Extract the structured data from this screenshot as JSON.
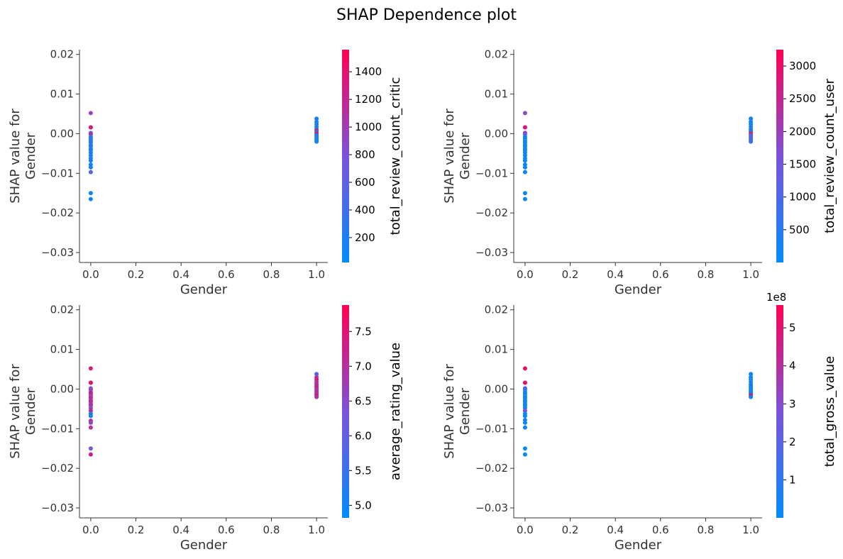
{
  "title": "SHAP Dependence plot",
  "chart_data": [
    {
      "type": "scatter",
      "xlabel": "Gender",
      "ylabel": [
        "SHAP value for",
        "Gender"
      ],
      "xlim": [
        -0.05,
        1.05
      ],
      "ylim": [
        -0.0325,
        0.0212
      ],
      "xticks": [
        0.0,
        0.2,
        0.4,
        0.6,
        0.8,
        1.0
      ],
      "xtick_labels": [
        "0.0",
        "0.2",
        "0.4",
        "0.6",
        "0.8",
        "1.0"
      ],
      "yticks": [
        0.02,
        0.01,
        0.0,
        -0.01,
        -0.02,
        -0.03
      ],
      "ytick_labels": [
        "0.02",
        "0.01",
        "0.00",
        "−0.01",
        "−0.02",
        "−0.03"
      ],
      "color_feature": "total_review_count_critic",
      "color_range": [
        20,
        1560
      ],
      "cbar_ticks": [
        200,
        400,
        600,
        800,
        1000,
        1200,
        1400
      ],
      "cbar_tick_labels": [
        "200",
        "400",
        "600",
        "800",
        "1000",
        "1200",
        "1400"
      ],
      "cbar_offset": "",
      "points": [
        {
          "x": 0,
          "y": 0.0052,
          "c": 900
        },
        {
          "x": 0,
          "y": 0.0016,
          "c": 1500
        },
        {
          "x": 0,
          "y": 0.0016,
          "c": 1300
        },
        {
          "x": 0,
          "y": 0.0002,
          "c": 700
        },
        {
          "x": 0,
          "y": -0.0002,
          "c": 1100
        },
        {
          "x": 0,
          "y": -0.0008,
          "c": 300
        },
        {
          "x": 0,
          "y": -0.0012,
          "c": 200
        },
        {
          "x": 0,
          "y": -0.0018,
          "c": 150
        },
        {
          "x": 0,
          "y": -0.0022,
          "c": 400
        },
        {
          "x": 0,
          "y": -0.0028,
          "c": 100
        },
        {
          "x": 0,
          "y": -0.0032,
          "c": 250
        },
        {
          "x": 0,
          "y": -0.0038,
          "c": 120
        },
        {
          "x": 0,
          "y": -0.0042,
          "c": 300
        },
        {
          "x": 0,
          "y": -0.0048,
          "c": 100
        },
        {
          "x": 0,
          "y": -0.0055,
          "c": 200
        },
        {
          "x": 0,
          "y": -0.0062,
          "c": 150
        },
        {
          "x": 0,
          "y": -0.0068,
          "c": 100
        },
        {
          "x": 0,
          "y": -0.0078,
          "c": 120
        },
        {
          "x": 0,
          "y": -0.0085,
          "c": 180
        },
        {
          "x": 0,
          "y": -0.0097,
          "c": 600
        },
        {
          "x": 0,
          "y": -0.015,
          "c": 100
        },
        {
          "x": 0,
          "y": -0.0165,
          "c": 100
        },
        {
          "x": 1,
          "y": 0.0038,
          "c": 150
        },
        {
          "x": 1,
          "y": 0.003,
          "c": 250
        },
        {
          "x": 1,
          "y": 0.0024,
          "c": 100
        },
        {
          "x": 1,
          "y": 0.0018,
          "c": 200
        },
        {
          "x": 1,
          "y": 0.0012,
          "c": 150
        },
        {
          "x": 1,
          "y": 0.0008,
          "c": 1300
        },
        {
          "x": 1,
          "y": 0.0004,
          "c": 200
        },
        {
          "x": 1,
          "y": 0.0,
          "c": 1400
        },
        {
          "x": 1,
          "y": -0.0004,
          "c": 100
        },
        {
          "x": 1,
          "y": -0.0008,
          "c": 300
        },
        {
          "x": 1,
          "y": -0.0012,
          "c": 150
        },
        {
          "x": 1,
          "y": -0.0016,
          "c": 200
        },
        {
          "x": 1,
          "y": -0.002,
          "c": 100
        }
      ]
    },
    {
      "type": "scatter",
      "xlabel": "Gender",
      "ylabel": [
        "SHAP value for",
        "Gender"
      ],
      "xlim": [
        -0.05,
        1.05
      ],
      "ylim": [
        -0.0325,
        0.0212
      ],
      "xticks": [
        0.0,
        0.2,
        0.4,
        0.6,
        0.8,
        1.0
      ],
      "xtick_labels": [
        "0.0",
        "0.2",
        "0.4",
        "0.6",
        "0.8",
        "1.0"
      ],
      "yticks": [
        0.02,
        0.01,
        0.0,
        -0.01,
        -0.02,
        -0.03
      ],
      "ytick_labels": [
        "0.02",
        "0.01",
        "0.00",
        "−0.01",
        "−0.02",
        "−0.03"
      ],
      "color_feature": "total_review_count_user",
      "color_range": [
        0,
        3250
      ],
      "cbar_ticks": [
        500,
        1000,
        1500,
        2000,
        2500,
        3000
      ],
      "cbar_tick_labels": [
        "500",
        "1000",
        "1500",
        "2000",
        "2500",
        "3000"
      ],
      "cbar_offset": "",
      "points": [
        {
          "x": 0,
          "y": 0.0052,
          "c": 1800
        },
        {
          "x": 0,
          "y": 0.0016,
          "c": 3000
        },
        {
          "x": 0,
          "y": 0.0016,
          "c": 2700
        },
        {
          "x": 0,
          "y": 0.0002,
          "c": 2200
        },
        {
          "x": 0,
          "y": -0.0002,
          "c": 1500
        },
        {
          "x": 0,
          "y": -0.0008,
          "c": 300
        },
        {
          "x": 0,
          "y": -0.0012,
          "c": 200
        },
        {
          "x": 0,
          "y": -0.0018,
          "c": 100
        },
        {
          "x": 0,
          "y": -0.0022,
          "c": 400
        },
        {
          "x": 0,
          "y": -0.0028,
          "c": 100
        },
        {
          "x": 0,
          "y": -0.0032,
          "c": 200
        },
        {
          "x": 0,
          "y": -0.0038,
          "c": 100
        },
        {
          "x": 0,
          "y": -0.0042,
          "c": 300
        },
        {
          "x": 0,
          "y": -0.0048,
          "c": 100
        },
        {
          "x": 0,
          "y": -0.0055,
          "c": 200
        },
        {
          "x": 0,
          "y": -0.0062,
          "c": 100
        },
        {
          "x": 0,
          "y": -0.0068,
          "c": 100
        },
        {
          "x": 0,
          "y": -0.0078,
          "c": 150
        },
        {
          "x": 0,
          "y": -0.0085,
          "c": 100
        },
        {
          "x": 0,
          "y": -0.0097,
          "c": 200
        },
        {
          "x": 0,
          "y": -0.015,
          "c": 100
        },
        {
          "x": 0,
          "y": -0.0165,
          "c": 100
        },
        {
          "x": 1,
          "y": 0.0038,
          "c": 200
        },
        {
          "x": 1,
          "y": 0.003,
          "c": 300
        },
        {
          "x": 1,
          "y": 0.0024,
          "c": 100
        },
        {
          "x": 1,
          "y": 0.0018,
          "c": 400
        },
        {
          "x": 1,
          "y": 0.0012,
          "c": 200
        },
        {
          "x": 1,
          "y": 0.0008,
          "c": 600
        },
        {
          "x": 1,
          "y": 0.0004,
          "c": 300
        },
        {
          "x": 1,
          "y": 0.0,
          "c": 2900
        },
        {
          "x": 1,
          "y": -0.0004,
          "c": 1500
        },
        {
          "x": 1,
          "y": -0.0008,
          "c": 800
        },
        {
          "x": 1,
          "y": -0.0012,
          "c": 1200
        },
        {
          "x": 1,
          "y": -0.0016,
          "c": 1000
        },
        {
          "x": 1,
          "y": -0.002,
          "c": 700
        }
      ]
    },
    {
      "type": "scatter",
      "xlabel": "Gender",
      "ylabel": [
        "SHAP value for",
        "Gender"
      ],
      "xlim": [
        -0.05,
        1.05
      ],
      "ylim": [
        -0.0325,
        0.0212
      ],
      "xticks": [
        0.0,
        0.2,
        0.4,
        0.6,
        0.8,
        1.0
      ],
      "xtick_labels": [
        "0.0",
        "0.2",
        "0.4",
        "0.6",
        "0.8",
        "1.0"
      ],
      "yticks": [
        0.02,
        0.01,
        0.0,
        -0.01,
        -0.02,
        -0.03
      ],
      "ytick_labels": [
        "0.02",
        "0.01",
        "0.00",
        "−0.01",
        "−0.02",
        "−0.03"
      ],
      "color_feature": "average_rating_value",
      "color_range": [
        4.82,
        7.88
      ],
      "cbar_ticks": [
        5.0,
        5.5,
        6.0,
        6.5,
        7.0,
        7.5
      ],
      "cbar_tick_labels": [
        "5.0",
        "5.5",
        "6.0",
        "6.5",
        "7.0",
        "7.5"
      ],
      "cbar_offset": "",
      "points": [
        {
          "x": 0,
          "y": 0.0052,
          "c": 7.4
        },
        {
          "x": 0,
          "y": 0.0016,
          "c": 7.3
        },
        {
          "x": 0,
          "y": 0.0016,
          "c": 7.6
        },
        {
          "x": 0,
          "y": 0.0002,
          "c": 6.2
        },
        {
          "x": 0,
          "y": -0.0002,
          "c": 6.6
        },
        {
          "x": 0,
          "y": -0.0008,
          "c": 7.0
        },
        {
          "x": 0,
          "y": -0.0012,
          "c": 7.2
        },
        {
          "x": 0,
          "y": -0.0018,
          "c": 6.8
        },
        {
          "x": 0,
          "y": -0.0022,
          "c": 7.1
        },
        {
          "x": 0,
          "y": -0.0028,
          "c": 6.9
        },
        {
          "x": 0,
          "y": -0.0032,
          "c": 7.3
        },
        {
          "x": 0,
          "y": -0.0038,
          "c": 6.7
        },
        {
          "x": 0,
          "y": -0.0042,
          "c": 7.0
        },
        {
          "x": 0,
          "y": -0.0048,
          "c": 6.5
        },
        {
          "x": 0,
          "y": -0.0055,
          "c": 7.2
        },
        {
          "x": 0,
          "y": -0.0062,
          "c": 5.2
        },
        {
          "x": 0,
          "y": -0.0068,
          "c": 5.1
        },
        {
          "x": 0,
          "y": -0.008,
          "c": 7.1
        },
        {
          "x": 0,
          "y": -0.0085,
          "c": 6.6
        },
        {
          "x": 0,
          "y": -0.0097,
          "c": 7.0
        },
        {
          "x": 0,
          "y": -0.015,
          "c": 6.3
        },
        {
          "x": 0,
          "y": -0.0165,
          "c": 7.3
        },
        {
          "x": 1,
          "y": 0.0038,
          "c": 6.0
        },
        {
          "x": 1,
          "y": 0.003,
          "c": 6.8
        },
        {
          "x": 1,
          "y": 0.0024,
          "c": 7.5
        },
        {
          "x": 1,
          "y": 0.0018,
          "c": 7.0
        },
        {
          "x": 1,
          "y": 0.0012,
          "c": 7.3
        },
        {
          "x": 1,
          "y": 0.0008,
          "c": 6.9
        },
        {
          "x": 1,
          "y": 0.0004,
          "c": 7.4
        },
        {
          "x": 1,
          "y": 0.0,
          "c": 7.1
        },
        {
          "x": 1,
          "y": -0.0004,
          "c": 6.7
        },
        {
          "x": 1,
          "y": -0.0008,
          "c": 7.2
        },
        {
          "x": 1,
          "y": -0.0012,
          "c": 6.9
        },
        {
          "x": 1,
          "y": -0.0016,
          "c": 7.5
        },
        {
          "x": 1,
          "y": -0.002,
          "c": 7.0
        }
      ]
    },
    {
      "type": "scatter",
      "xlabel": "Gender",
      "ylabel": [
        "SHAP value for",
        "Gender"
      ],
      "xlim": [
        -0.05,
        1.05
      ],
      "ylim": [
        -0.0325,
        0.0212
      ],
      "xticks": [
        0.0,
        0.2,
        0.4,
        0.6,
        0.8,
        1.0
      ],
      "xtick_labels": [
        "0.0",
        "0.2",
        "0.4",
        "0.6",
        "0.8",
        "1.0"
      ],
      "yticks": [
        0.02,
        0.01,
        0.0,
        -0.01,
        -0.02,
        -0.03
      ],
      "ytick_labels": [
        "0.02",
        "0.01",
        "0.00",
        "−0.01",
        "−0.02",
        "−0.03"
      ],
      "color_feature": "total_gross_value",
      "color_range": [
        0,
        5.6
      ],
      "cbar_ticks": [
        1,
        2,
        3,
        4,
        5
      ],
      "cbar_tick_labels": [
        "1",
        "2",
        "3",
        "4",
        "5"
      ],
      "cbar_offset": "1e8",
      "points": [
        {
          "x": 0,
          "y": 0.0052,
          "c": 5.2
        },
        {
          "x": 0,
          "y": 0.0016,
          "c": 4.8
        },
        {
          "x": 0,
          "y": 0.0016,
          "c": 5.0
        },
        {
          "x": 0,
          "y": 0.0002,
          "c": 2.0
        },
        {
          "x": 0,
          "y": -0.0002,
          "c": 1.0
        },
        {
          "x": 0,
          "y": -0.0008,
          "c": 0.5
        },
        {
          "x": 0,
          "y": -0.0012,
          "c": 0.3
        },
        {
          "x": 0,
          "y": -0.0018,
          "c": 0.2
        },
        {
          "x": 0,
          "y": -0.0022,
          "c": 0.4
        },
        {
          "x": 0,
          "y": -0.0028,
          "c": 0.2
        },
        {
          "x": 0,
          "y": -0.0032,
          "c": 0.3
        },
        {
          "x": 0,
          "y": -0.0038,
          "c": 0.2
        },
        {
          "x": 0,
          "y": -0.0042,
          "c": 0.5
        },
        {
          "x": 0,
          "y": -0.0048,
          "c": 0.2
        },
        {
          "x": 0,
          "y": -0.0055,
          "c": 3.0
        },
        {
          "x": 0,
          "y": -0.0062,
          "c": 0.3
        },
        {
          "x": 0,
          "y": -0.0068,
          "c": 0.2
        },
        {
          "x": 0,
          "y": -0.0078,
          "c": 0.3
        },
        {
          "x": 0,
          "y": -0.0085,
          "c": 0.2
        },
        {
          "x": 0,
          "y": -0.0097,
          "c": 0.2
        },
        {
          "x": 0,
          "y": -0.015,
          "c": 0.1
        },
        {
          "x": 0,
          "y": -0.0165,
          "c": 0.1
        },
        {
          "x": 1,
          "y": 0.0038,
          "c": 0.3
        },
        {
          "x": 1,
          "y": 0.003,
          "c": 0.4
        },
        {
          "x": 1,
          "y": 0.0024,
          "c": 0.2
        },
        {
          "x": 1,
          "y": 0.0018,
          "c": 0.5
        },
        {
          "x": 1,
          "y": 0.0012,
          "c": 0.3
        },
        {
          "x": 1,
          "y": 0.0008,
          "c": 0.4
        },
        {
          "x": 1,
          "y": 0.0004,
          "c": 0.2
        },
        {
          "x": 1,
          "y": 0.0,
          "c": 0.3
        },
        {
          "x": 1,
          "y": -0.0004,
          "c": 0.4
        },
        {
          "x": 1,
          "y": -0.0008,
          "c": 0.2
        },
        {
          "x": 1,
          "y": -0.0012,
          "c": 0.5
        },
        {
          "x": 1,
          "y": -0.0016,
          "c": 5.0
        },
        {
          "x": 1,
          "y": -0.002,
          "c": 0.3
        }
      ]
    }
  ],
  "colormap": {
    "low": "#008bfb",
    "mid": "#7c52d8",
    "high": "#ff0052"
  }
}
